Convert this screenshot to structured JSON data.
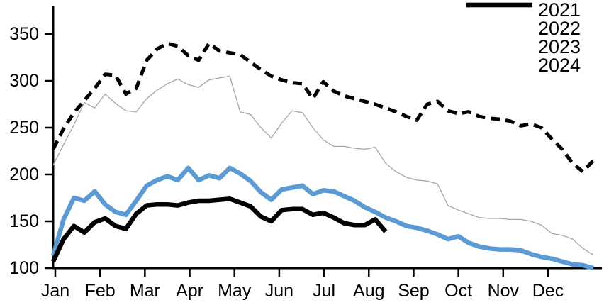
{
  "chart_data": {
    "type": "line",
    "title": "",
    "xlabel": "",
    "ylabel": "",
    "x_axis": {
      "unit": "week-of-year",
      "month_ticks": [
        "Jan",
        "Feb",
        "Mar",
        "Apr",
        "May",
        "Jun",
        "Jul",
        "Aug",
        "Sep",
        "Oct",
        "Nov",
        "Dec"
      ]
    },
    "y_axis": {
      "min": 100,
      "max": 350,
      "ticks": [
        100,
        150,
        200,
        250,
        300,
        350
      ]
    },
    "grid": "off",
    "legend_position": "top-right",
    "axis_color": "#000000",
    "series": [
      {
        "name": "2022",
        "color": "#a6a6a6",
        "style": "solid",
        "width": 1.3,
        "values": [
          210,
          232,
          253,
          277,
          271,
          286,
          276,
          268,
          267,
          281,
          290,
          297,
          302,
          296,
          293,
          301,
          303,
          305,
          267,
          264,
          250,
          239,
          255,
          268,
          266,
          250,
          237,
          230,
          230,
          228,
          227,
          229,
          212,
          203,
          197,
          194,
          193,
          190,
          167,
          162,
          158,
          154,
          153,
          153,
          152,
          152,
          150,
          146,
          137,
          135,
          131,
          121,
          114
        ]
      },
      {
        "name": "2021",
        "color": "#000000",
        "style": "dashed",
        "width": 5,
        "values": [
          227,
          249,
          266,
          279,
          292,
          307,
          306,
          286,
          292,
          322,
          334,
          340,
          337,
          327,
          322,
          340,
          332,
          330,
          328,
          320,
          312,
          305,
          301,
          298,
          297,
          281,
          299,
          289,
          284,
          281,
          278,
          275,
          271,
          267,
          262,
          258,
          275,
          278,
          268,
          265,
          267,
          262,
          260,
          259,
          257,
          252,
          254,
          250,
          238,
          227,
          212,
          203,
          215
        ]
      },
      {
        "name": "2023",
        "color": "#5b9bd5",
        "style": "solid",
        "width": 6.5,
        "values": [
          113,
          152,
          175,
          172,
          182,
          168,
          160,
          157,
          172,
          188,
          194,
          198,
          194,
          207,
          194,
          199,
          196,
          207,
          201,
          193,
          181,
          173,
          184,
          186,
          188,
          179,
          183,
          182,
          177,
          172,
          165,
          160,
          154,
          150,
          145,
          143,
          140,
          136,
          131,
          134,
          127,
          123,
          121,
          120,
          120,
          119,
          115,
          112,
          110,
          107,
          104,
          103,
          100
        ]
      },
      {
        "name": "2024",
        "color": "#000000",
        "style": "solid",
        "width": 6.5,
        "values": [
          107,
          131,
          145,
          138,
          149,
          153,
          145,
          142,
          158,
          167,
          168,
          168,
          167,
          170,
          172,
          172,
          173,
          174,
          170,
          166,
          155,
          150,
          162,
          163,
          163,
          157,
          159,
          154,
          148,
          146,
          146,
          152,
          139
        ]
      }
    ],
    "legend_order": [
      "2021",
      "2022",
      "2023",
      "2024"
    ]
  }
}
